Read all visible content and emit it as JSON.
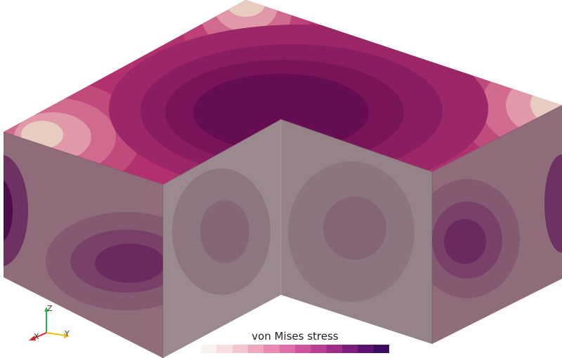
{
  "viewport": {
    "background": "#ffffff"
  },
  "legend": {
    "title": "von Mises stress",
    "colors": [
      "#fbf2f2",
      "#f8dfe2",
      "#f4c6d0",
      "#f0a8c0",
      "#ea8ab3",
      "#e06ea8",
      "#cf549d",
      "#b93f93",
      "#9d2d88",
      "#7c1d7d",
      "#5a1270",
      "#3d0d62"
    ]
  },
  "axes_triad": {
    "x_label": "X",
    "y_label": "Y",
    "z_label": "Z",
    "x_color": "#e02020",
    "y_color": "#e8c01c",
    "z_color": "#23b84a"
  },
  "model_colors": {
    "top_base": "#a6286b",
    "side_base": "#8c6f7b",
    "edge_light": "#e9d8c8",
    "deep": "#5d0b52"
  }
}
